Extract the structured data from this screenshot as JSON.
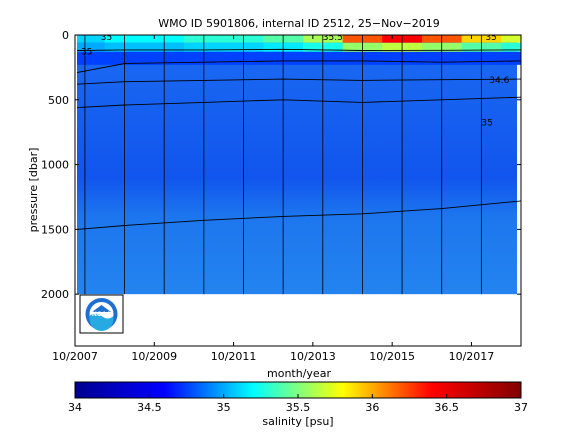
{
  "chart_data": {
    "type": "heatmap",
    "title": "WMO ID 5901806, internal ID 2512, 25−Nov−2019",
    "xlabel": "month/year",
    "ylabel": "pressure [dbar]",
    "colorbar_label": "salinity [psu]",
    "x_tick_labels": [
      "10/2007",
      "10/2009",
      "10/2011",
      "10/2013",
      "10/2015",
      "10/2017"
    ],
    "x_tick_years": [
      2007.75,
      2009.75,
      2011.75,
      2013.75,
      2015.75,
      2017.75
    ],
    "xlim": [
      2007.75,
      2019.0
    ],
    "y_ticks": [
      0,
      500,
      1000,
      1500,
      2000
    ],
    "ylim": [
      0,
      2400
    ],
    "y_reversed": true,
    "clim": [
      34,
      37
    ],
    "colorbar_ticks": [
      34,
      34.5,
      35,
      35.5,
      36,
      36.5,
      37
    ],
    "colorbar_tick_labels": [
      "34",
      "34.5",
      "35",
      "35.5",
      "36",
      "36.5",
      "37"
    ],
    "colormap": [
      "#00008f",
      "#0000ff",
      "#00ffff",
      "#ffff00",
      "#ff0000",
      "#800000"
    ],
    "profile_depth_limit": 2000,
    "year_lines": [
      2008.0,
      2009.0,
      2010.0,
      2011.0,
      2012.0,
      2013.0,
      2014.0,
      2015.0,
      2016.0,
      2017.0,
      2018.0,
      2019.0
    ],
    "contour_levels": [
      34.6,
      34.7,
      34.8,
      35.0,
      35.5
    ],
    "contour_labels": [
      {
        "text": "35",
        "x": 2008.4,
        "p": 40
      },
      {
        "text": "35",
        "x": 2007.9,
        "p": 150
      },
      {
        "text": "35.5",
        "x": 2014.0,
        "p": 40
      },
      {
        "text": "35",
        "x": 2018.1,
        "p": 40
      },
      {
        "text": "34.6",
        "x": 2018.2,
        "p": 370
      },
      {
        "text": "35",
        "x": 2018.0,
        "p": 700
      }
    ],
    "series": [
      {
        "name": "",
        "x": [
          2007.8,
          2009.0,
          2011.0,
          2013.0,
          2015.0,
          2017.0,
          2019.0
        ],
        "p": [
          120,
          115,
          115,
          110,
          120,
          118,
          115
        ]
      },
      {
        "name": "",
        "x": [
          2007.8,
          2009.0,
          2011.0,
          2013.0,
          2015.0,
          2017.0,
          2019.0
        ],
        "p": [
          290,
          220,
          210,
          200,
          200,
          210,
          200
        ]
      },
      {
        "name": "",
        "x": [
          2007.8,
          2009.0,
          2011.0,
          2013.0,
          2015.0,
          2017.0,
          2019.0
        ],
        "p": [
          380,
          360,
          350,
          340,
          350,
          345,
          340
        ]
      },
      {
        "name": "",
        "x": [
          2007.8,
          2009.0,
          2011.0,
          2013.0,
          2015.0,
          2017.0,
          2019.0
        ],
        "p": [
          560,
          540,
          520,
          500,
          520,
          500,
          480
        ]
      },
      {
        "name": "",
        "x": [
          2007.8,
          2009.0,
          2011.0,
          2013.0,
          2015.0,
          2017.0,
          2019.0
        ],
        "p": [
          1500,
          1470,
          1430,
          1400,
          1380,
          1340,
          1280
        ]
      }
    ],
    "surface_salinity": [
      {
        "x": 2007.8,
        "s": 35.1
      },
      {
        "x": 2008.5,
        "s": 35.2
      },
      {
        "x": 2009.5,
        "s": 35.2
      },
      {
        "x": 2010.5,
        "s": 35.3
      },
      {
        "x": 2011.5,
        "s": 35.3
      },
      {
        "x": 2012.5,
        "s": 35.4
      },
      {
        "x": 2013.5,
        "s": 35.6
      },
      {
        "x": 2014.5,
        "s": 36.2
      },
      {
        "x": 2015.5,
        "s": 36.4
      },
      {
        "x": 2016.5,
        "s": 36.2
      },
      {
        "x": 2017.5,
        "s": 35.9
      },
      {
        "x": 2018.5,
        "s": 35.7
      }
    ],
    "legend": "none"
  },
  "logo": {
    "text": "NOAA",
    "ring_color": "#1f6fd1",
    "wave_color": "#27a9e1"
  }
}
